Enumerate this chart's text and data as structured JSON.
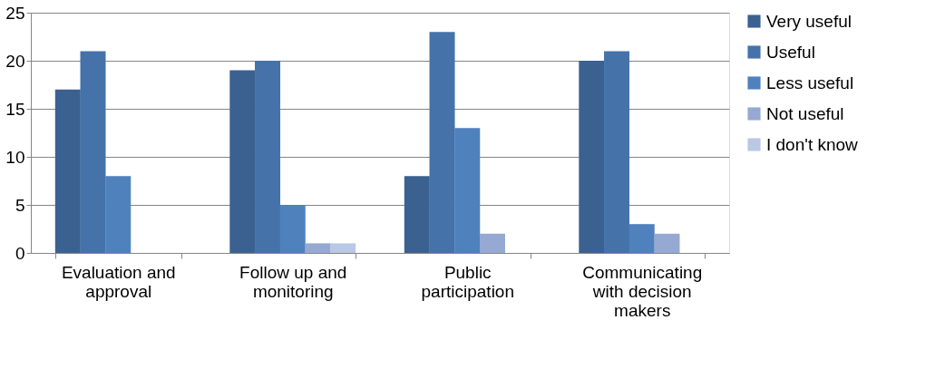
{
  "chart_data": {
    "type": "bar",
    "categories": [
      "Evaluation and approval",
      "Follow up and monitoring",
      "Public participation",
      "Communicating with decision makers"
    ],
    "series": [
      {
        "name": "Very useful",
        "color": "#3b6190",
        "values": [
          17,
          19,
          8,
          20
        ]
      },
      {
        "name": "Useful",
        "color": "#4573a9",
        "values": [
          21,
          20,
          23,
          21
        ]
      },
      {
        "name": "Less useful",
        "color": "#4f81bd",
        "values": [
          8,
          5,
          13,
          3
        ]
      },
      {
        "name": "Not useful",
        "color": "#95a9d3",
        "values": [
          0,
          1,
          2,
          2
        ]
      },
      {
        "name": "I don't know",
        "color": "#b9c8e4",
        "values": [
          0,
          1,
          0,
          0
        ]
      }
    ],
    "ylim": [
      0,
      25
    ],
    "yticks": [
      0,
      5,
      10,
      15,
      20,
      25
    ],
    "grid": "y",
    "legend": "right"
  }
}
